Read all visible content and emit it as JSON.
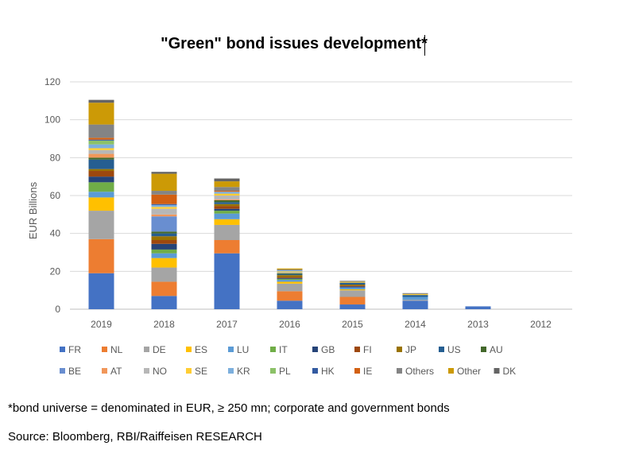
{
  "chart_data": {
    "type": "bar",
    "stacked": true,
    "title": "\"Green\" bond issues development*",
    "xlabel": "",
    "ylabel": "EUR Billions",
    "ylim": [
      0,
      120
    ],
    "yticks": [
      "0",
      "20",
      "40",
      "60",
      "80",
      "100",
      "120"
    ],
    "categories": [
      "2019",
      "2018",
      "2017",
      "2016",
      "2015",
      "2014",
      "2013",
      "2012"
    ],
    "grid": true,
    "legend_position": "bottom",
    "series": [
      {
        "name": "FR",
        "color": "#4472C4",
        "values": [
          19,
          7,
          29.5,
          4.5,
          2.5,
          4.5,
          1.5,
          0
        ]
      },
      {
        "name": "NL",
        "color": "#ED7D31",
        "values": [
          18,
          7.5,
          7,
          5,
          4,
          0,
          0,
          0
        ]
      },
      {
        "name": "DE",
        "color": "#A5A5A5",
        "values": [
          15,
          7.5,
          8,
          4,
          3.5,
          0.5,
          0,
          0
        ]
      },
      {
        "name": "ES",
        "color": "#FFC000",
        "values": [
          7,
          5,
          3,
          1,
          0.5,
          0,
          0,
          0
        ]
      },
      {
        "name": "LU",
        "color": "#5B9BD5",
        "values": [
          3,
          2.5,
          3,
          1,
          1,
          1.5,
          0,
          0
        ]
      },
      {
        "name": "IT",
        "color": "#70AD47",
        "values": [
          5,
          2,
          1.5,
          0.5,
          0,
          0,
          0,
          0
        ]
      },
      {
        "name": "GB",
        "color": "#264478",
        "values": [
          3,
          3,
          1,
          0.5,
          0.5,
          0,
          0,
          0
        ]
      },
      {
        "name": "FI",
        "color": "#9E480E",
        "values": [
          3,
          2,
          1.5,
          0.5,
          0.5,
          0,
          0,
          0
        ]
      },
      {
        "name": "JP",
        "color": "#997300",
        "values": [
          1,
          2,
          1,
          1,
          0.5,
          0,
          0,
          0
        ]
      },
      {
        "name": "US",
        "color": "#255E91",
        "values": [
          5,
          1.5,
          1,
          0.5,
          1,
          1,
          0,
          0
        ]
      },
      {
        "name": "AU",
        "color": "#43682B",
        "values": [
          1,
          1,
          1,
          0.5,
          0,
          0,
          0,
          0
        ]
      },
      {
        "name": "BE",
        "color": "#698ED0",
        "values": [
          0,
          8,
          0,
          0,
          0,
          0,
          0,
          0
        ]
      },
      {
        "name": "AT",
        "color": "#F1975A",
        "values": [
          2,
          1,
          0.5,
          0,
          0,
          0,
          0,
          0
        ]
      },
      {
        "name": "NO",
        "color": "#B7B7B7",
        "values": [
          2,
          3,
          2,
          0.5,
          0,
          0,
          0,
          0
        ]
      },
      {
        "name": "SE",
        "color": "#FFCD33",
        "values": [
          1,
          1,
          1,
          0.5,
          0.5,
          0.5,
          0,
          0
        ]
      },
      {
        "name": "KR",
        "color": "#7CAFDD",
        "values": [
          2,
          1,
          1,
          0.5,
          0,
          0,
          0,
          0
        ]
      },
      {
        "name": "PL",
        "color": "#8CC168",
        "values": [
          2,
          0,
          0,
          0,
          0,
          0,
          0,
          0
        ]
      },
      {
        "name": "HK",
        "color": "#335AA1",
        "values": [
          0.5,
          0.5,
          0,
          0,
          0,
          0,
          0,
          0
        ]
      },
      {
        "name": "IE",
        "color": "#D26012",
        "values": [
          1,
          5,
          0.5,
          0,
          0,
          0,
          0,
          0
        ]
      },
      {
        "name": "Others",
        "color": "#848484",
        "values": [
          7,
          2,
          2,
          0.5,
          0.5,
          0.5,
          0,
          0
        ]
      },
      {
        "name": "Other",
        "color": "#CC9A06",
        "values": [
          11.5,
          9,
          3,
          0.5,
          0,
          0,
          0,
          0
        ]
      },
      {
        "name": "DK",
        "color": "#646464",
        "values": [
          1.5,
          1,
          1.5,
          0,
          0,
          0,
          0,
          0
        ]
      }
    ]
  },
  "footnotes": {
    "universe": "*bond universe = denominated in EUR, ≥ 250 mn; corporate and government bonds",
    "source": "Source: Bloomberg, RBI/Raiffeisen RESEARCH"
  }
}
